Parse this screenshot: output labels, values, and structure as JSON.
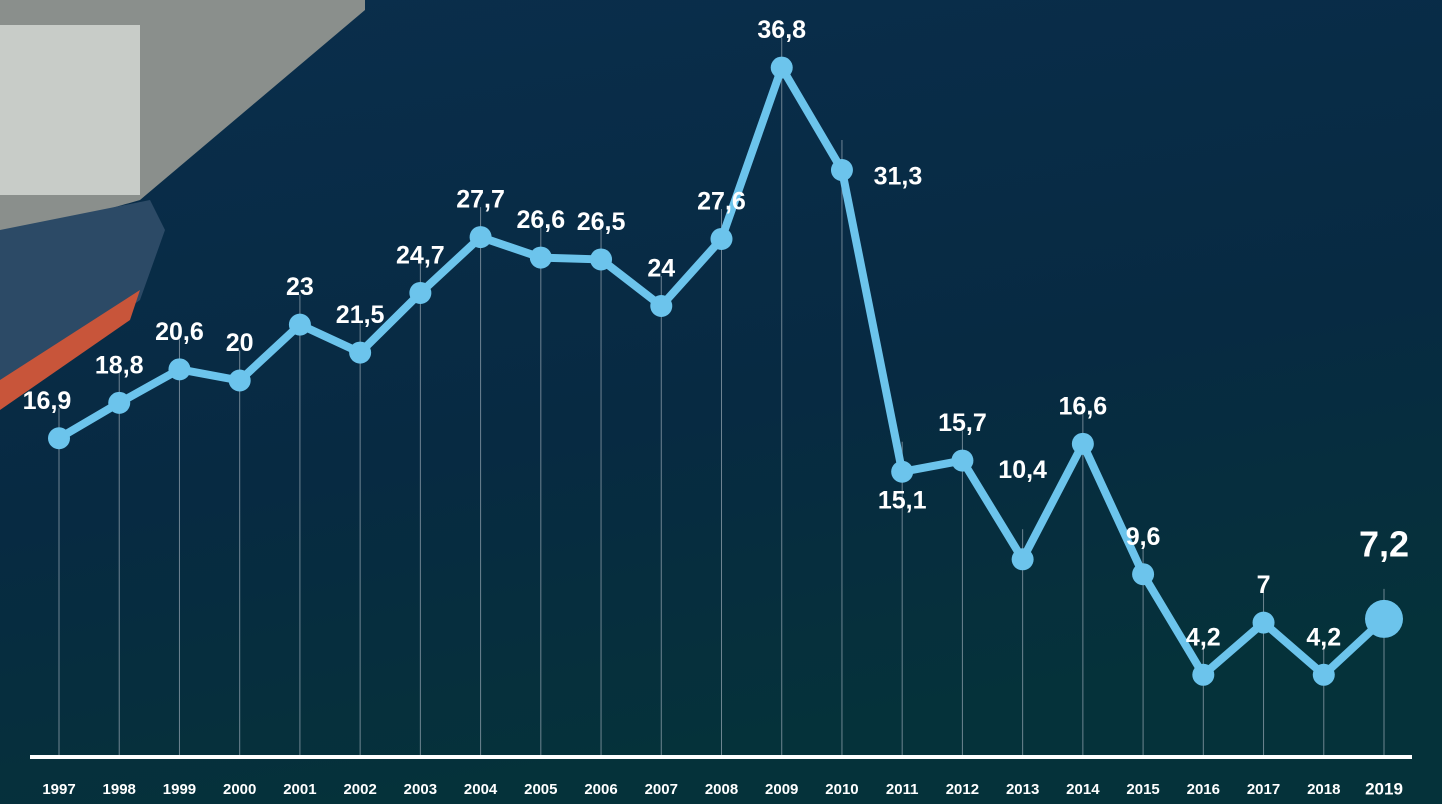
{
  "chart_data": {
    "type": "line",
    "categories": [
      "1997",
      "1998",
      "1999",
      "2000",
      "2001",
      "2002",
      "2003",
      "2004",
      "2005",
      "2006",
      "2007",
      "2008",
      "2009",
      "2010",
      "2011",
      "2012",
      "2013",
      "2014",
      "2015",
      "2016",
      "2017",
      "2018",
      "2019"
    ],
    "values": [
      16.9,
      18.8,
      20.6,
      20,
      23,
      21.5,
      24.7,
      27.7,
      26.6,
      26.5,
      24,
      27.6,
      36.8,
      31.3,
      15.1,
      15.7,
      10.4,
      16.6,
      9.6,
      4.2,
      7,
      4.2,
      7.2
    ],
    "value_labels": [
      "16,9",
      "18,8",
      "20,6",
      "20",
      "23",
      "21,5",
      "24,7",
      "27,7",
      "26,6",
      "26,5",
      "24",
      "27,6",
      "36,8",
      "31,3",
      "15,1",
      "15,7",
      "10,4",
      "16,6",
      "9,6",
      "4,2",
      "7",
      "4,2",
      "7,2"
    ],
    "color": "#6cc4ec",
    "ylim": [
      0,
      40
    ]
  }
}
